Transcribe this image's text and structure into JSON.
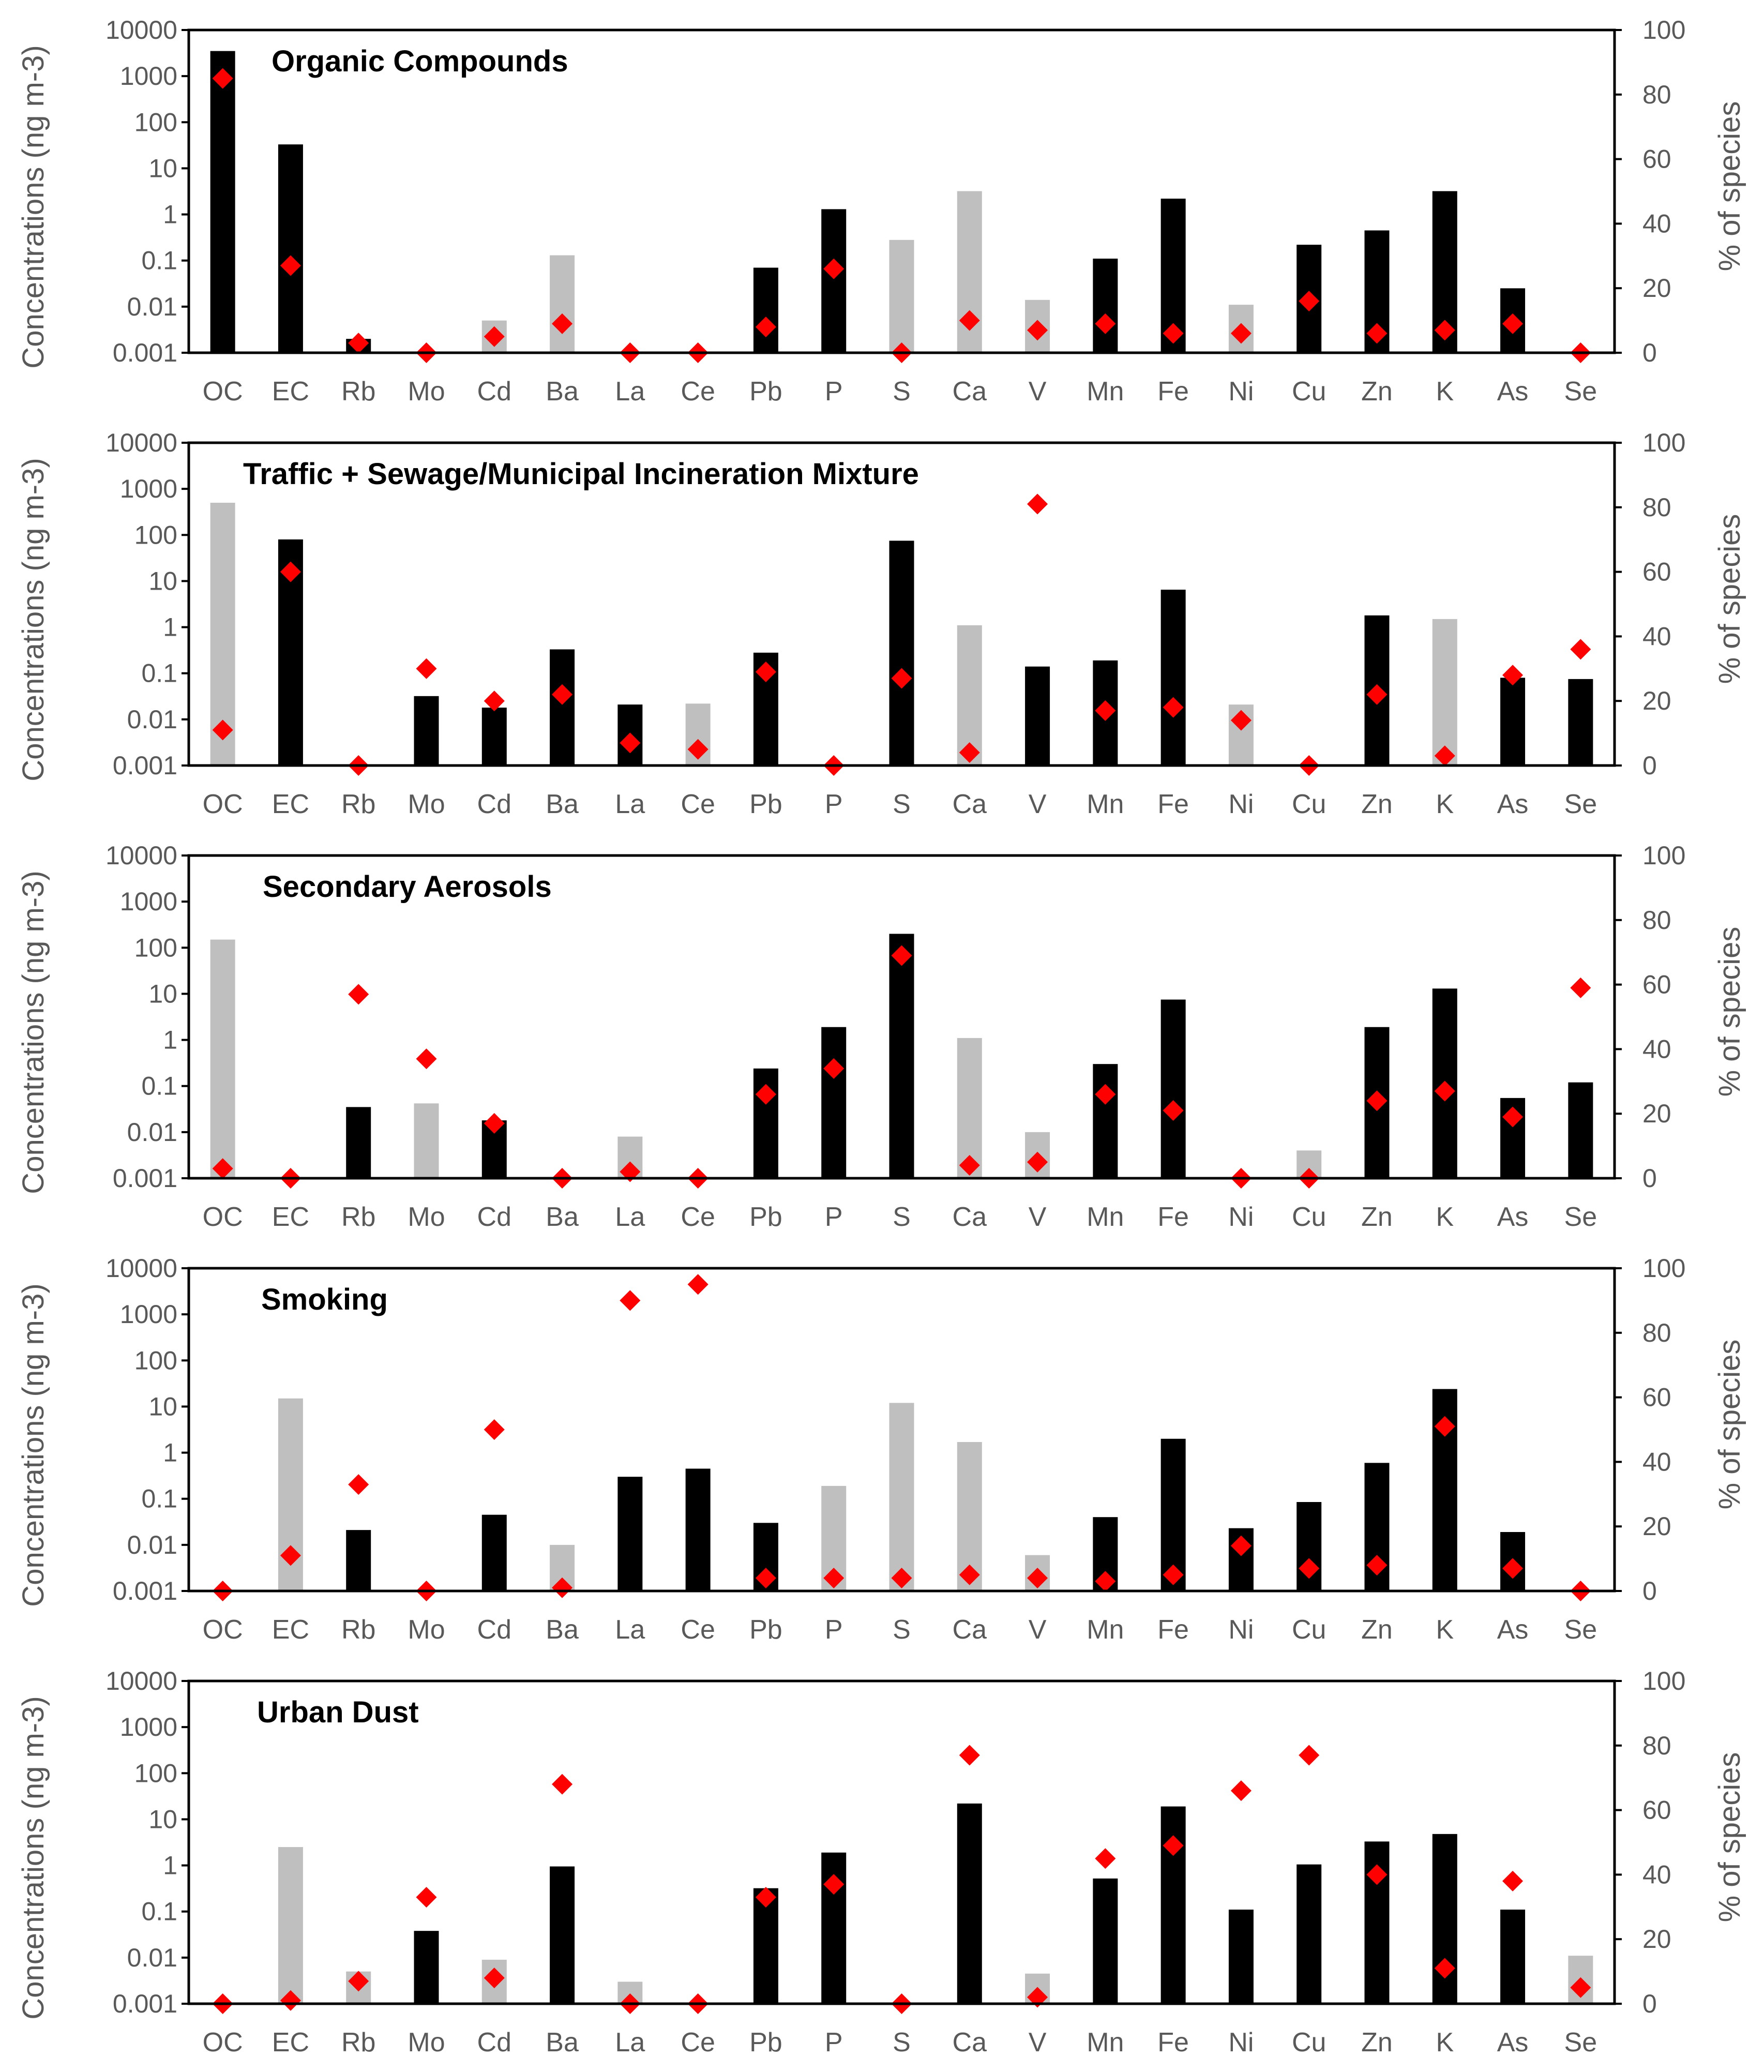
{
  "chart_data": {
    "type": "bar",
    "categories": [
      "OC",
      "EC",
      "Rb",
      "Mo",
      "Cd",
      "Ba",
      "La",
      "Ce",
      "Pb",
      "P",
      "S",
      "Ca",
      "V",
      "Mn",
      "Fe",
      "Ni",
      "Cu",
      "Zn",
      "K",
      "As",
      "Se"
    ],
    "left_axis": {
      "scale": "log",
      "ylim": [
        0.001,
        10000
      ],
      "ticks": [
        "0.001",
        "0.01",
        "0.1",
        "1",
        "10",
        "100",
        "1000",
        "10000"
      ]
    },
    "right_axis": {
      "ylabel": "% of species",
      "ylim": [
        0,
        100
      ],
      "ticks": [
        "0",
        "20",
        "40",
        "60",
        "80",
        "100"
      ]
    },
    "colors": {
      "primary_bar": "#000000",
      "secondary_bar": "#bfbfbf",
      "marker": "#ff0000",
      "frame": "#000000",
      "text": "#595959"
    },
    "panels": [
      {
        "title": "Organic Compounds",
        "ylabel": "Concentrations (ng m-3)",
        "concentrations": [
          3500,
          33,
          0.002,
          null,
          0.005,
          0.13,
          null,
          null,
          0.07,
          1.3,
          0.28,
          3.2,
          0.014,
          0.11,
          2.2,
          0.011,
          0.22,
          0.45,
          3.2,
          0.025,
          null
        ],
        "bar_type": [
          "black",
          "black",
          "black",
          "none",
          "gray",
          "gray",
          "none",
          "none",
          "black",
          "black",
          "gray",
          "gray",
          "gray",
          "black",
          "black",
          "gray",
          "black",
          "black",
          "black",
          "black",
          "none"
        ],
        "percent_of_species": [
          85,
          27,
          3,
          0,
          5,
          9,
          0,
          0,
          8,
          26,
          0,
          10,
          7,
          9,
          6,
          6,
          16,
          6,
          7,
          9,
          0
        ]
      },
      {
        "title": "Traffic + Sewage/Municipal Incineration Mixture",
        "ylabel": "Concentrations (ng m-3)",
        "concentrations": [
          500,
          80,
          null,
          0.032,
          0.018,
          0.33,
          0.021,
          0.022,
          0.28,
          null,
          75,
          1.1,
          0.14,
          0.19,
          6.5,
          0.021,
          null,
          1.8,
          1.5,
          0.08,
          0.075
        ],
        "bar_type": [
          "gray",
          "black",
          "none",
          "black",
          "black",
          "black",
          "black",
          "gray",
          "black",
          "none",
          "black",
          "gray",
          "black",
          "black",
          "black",
          "gray",
          "none",
          "black",
          "gray",
          "black",
          "black"
        ],
        "percent_of_species": [
          11,
          60,
          0,
          30,
          20,
          22,
          7,
          5,
          29,
          0,
          27,
          4,
          81,
          17,
          18,
          14,
          0,
          22,
          3,
          28,
          36
        ]
      },
      {
        "title": "Secondary Aerosols",
        "ylabel": "Concentrations (ng m-3)",
        "concentrations": [
          150,
          null,
          0.035,
          0.042,
          0.018,
          null,
          0.008,
          null,
          0.24,
          1.9,
          200,
          1.1,
          0.01,
          0.3,
          7.5,
          null,
          0.004,
          1.9,
          13,
          0.055,
          0.12
        ],
        "bar_type": [
          "gray",
          "none",
          "black",
          "gray",
          "black",
          "none",
          "gray",
          "none",
          "black",
          "black",
          "black",
          "gray",
          "gray",
          "black",
          "black",
          "none",
          "gray",
          "black",
          "black",
          "black",
          "black"
        ],
        "percent_of_species": [
          3,
          0,
          57,
          37,
          17,
          0,
          2,
          0,
          26,
          34,
          69,
          4,
          5,
          26,
          21,
          0,
          0,
          24,
          27,
          19,
          59
        ]
      },
      {
        "title": "Smoking",
        "ylabel": "Concentrations (ng m-3)",
        "concentrations": [
          null,
          15,
          0.021,
          null,
          0.045,
          0.01,
          0.3,
          0.45,
          0.03,
          0.19,
          12,
          1.7,
          0.006,
          0.04,
          2,
          0.023,
          0.085,
          0.6,
          24,
          0.019,
          null
        ],
        "bar_type": [
          "none",
          "gray",
          "black",
          "none",
          "black",
          "gray",
          "black",
          "black",
          "black",
          "gray",
          "gray",
          "gray",
          "gray",
          "black",
          "black",
          "black",
          "black",
          "black",
          "black",
          "black",
          "none"
        ],
        "percent_of_species": [
          0,
          11,
          33,
          0,
          50,
          1,
          90,
          95,
          4,
          4,
          4,
          5,
          4,
          3,
          5,
          14,
          7,
          8,
          51,
          7,
          0
        ]
      },
      {
        "title": "Urban Dust",
        "ylabel": "Concentrations (ng m-3)",
        "concentrations": [
          null,
          2.5,
          0.005,
          0.038,
          0.009,
          0.95,
          0.003,
          null,
          0.32,
          1.9,
          null,
          22,
          0.0045,
          0.52,
          19,
          0.11,
          1.05,
          3.3,
          4.8,
          0.11,
          0.011
        ],
        "bar_type": [
          "none",
          "gray",
          "gray",
          "black",
          "gray",
          "black",
          "gray",
          "none",
          "black",
          "black",
          "none",
          "black",
          "gray",
          "black",
          "black",
          "black",
          "black",
          "black",
          "black",
          "black",
          "gray"
        ],
        "percent_of_species": [
          0,
          1,
          7,
          33,
          8,
          68,
          0,
          0,
          33,
          37,
          0,
          77,
          2,
          45,
          49,
          66,
          77,
          40,
          11,
          38,
          5
        ]
      }
    ]
  }
}
